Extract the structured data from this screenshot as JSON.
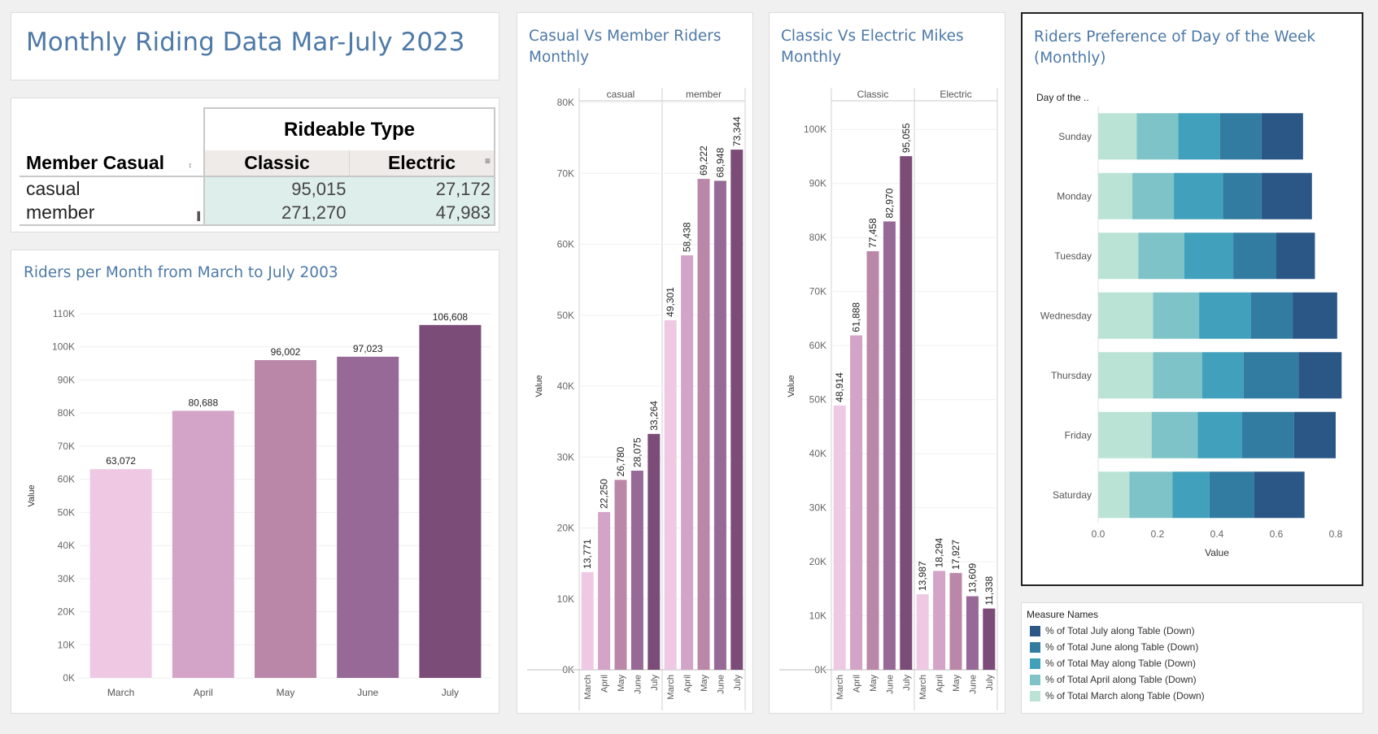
{
  "dashboard": {
    "title": "Monthly Riding Data Mar-July 2023"
  },
  "crosstab": {
    "column_group_header": "Rideable Type",
    "row_header": "Member Casual",
    "columns": [
      "Classic",
      "Electric"
    ],
    "rows": [
      {
        "label": "casual",
        "classic": "95,015",
        "electric": "27,172"
      },
      {
        "label": "member",
        "classic": "271,270",
        "electric": "47,983"
      }
    ]
  },
  "panels": {
    "riders_per_month_title": "Riders per Month from March to July 2003",
    "casual_vs_member_title": "Casual Vs Member Riders\nMonthly",
    "classic_vs_electric_title": "Classic Vs Electric Mikes\nMonthly",
    "day_pref_title": "Riders Preference of Day of the Week\n(Monthly)"
  },
  "legend": {
    "title": "Measure Names",
    "items": [
      {
        "label": "% of Total July along Table (Down)",
        "color": "#2b5787"
      },
      {
        "label": "% of Total June along Table (Down)",
        "color": "#327ca2"
      },
      {
        "label": "% of Total May along Table (Down)",
        "color": "#41a0bb"
      },
      {
        "label": "% of Total April along Table (Down)",
        "color": "#7ec3c8"
      },
      {
        "label": "% of Total March along Table (Down)",
        "color": "#bae3d6"
      }
    ]
  },
  "chart_data": [
    {
      "type": "bar",
      "title": "Riders per Month from March to July 2003",
      "ylabel": "Value",
      "categories": [
        "March",
        "April",
        "May",
        "June",
        "July"
      ],
      "values": [
        63072,
        80688,
        96002,
        97023,
        106608
      ],
      "data_labels": [
        "63,072",
        "80,688",
        "96,002",
        "97,023",
        "106,608"
      ],
      "ylim": [
        0,
        110000
      ],
      "yticks": [
        "0K",
        "10K",
        "20K",
        "30K",
        "40K",
        "50K",
        "60K",
        "70K",
        "80K",
        "90K",
        "100K",
        "110K"
      ],
      "colors": [
        "#efc9e4",
        "#d4a3c8",
        "#bb87a9",
        "#966997",
        "#7c4c78"
      ]
    },
    {
      "type": "bar",
      "title": "Casual Vs Member Riders\nMonthly",
      "ylabel": "Value",
      "panes": [
        "casual",
        "member"
      ],
      "categories": [
        "March",
        "April",
        "May",
        "June",
        "July"
      ],
      "series": [
        {
          "name": "casual",
          "values": [
            13771,
            22250,
            26780,
            28075,
            33264
          ],
          "data_labels": [
            "13,771",
            "22,250",
            "26,780",
            "28,075",
            "33,264"
          ]
        },
        {
          "name": "member",
          "values": [
            49301,
            58438,
            69222,
            68948,
            73344
          ],
          "data_labels": [
            "49,301",
            "58,438",
            "69,222",
            "68,948",
            "73,344"
          ]
        }
      ],
      "ylim": [
        0,
        80000
      ],
      "yticks": [
        "0K",
        "10K",
        "20K",
        "30K",
        "40K",
        "50K",
        "60K",
        "70K",
        "80K"
      ],
      "colors": [
        "#efc9e4",
        "#d4a3c8",
        "#bb87a9",
        "#966997",
        "#7c4c78"
      ]
    },
    {
      "type": "bar",
      "title": "Classic Vs Electric Mikes\nMonthly",
      "ylabel": "Value",
      "panes": [
        "Classic",
        "Electric"
      ],
      "categories": [
        "March",
        "April",
        "May",
        "June",
        "July"
      ],
      "series": [
        {
          "name": "Classic",
          "values": [
            48914,
            61888,
            77458,
            82970,
            95055
          ],
          "data_labels": [
            "48,914",
            "61,888",
            "77,458",
            "82,970",
            "95,055"
          ]
        },
        {
          "name": "Electric",
          "values": [
            13987,
            18294,
            17927,
            13609,
            11338
          ],
          "data_labels": [
            "13,987",
            "18,294",
            "17,927",
            "13,609",
            "11,338"
          ]
        }
      ],
      "ylim": [
        0,
        105000
      ],
      "yticks": [
        "0K",
        "10K",
        "20K",
        "30K",
        "40K",
        "50K",
        "60K",
        "70K",
        "80K",
        "90K",
        "100K"
      ],
      "colors": [
        "#efc9e4",
        "#d4a3c8",
        "#bb87a9",
        "#966997",
        "#7c4c78"
      ]
    },
    {
      "type": "bar",
      "orientation": "horizontal",
      "stacked": true,
      "title": "Riders Preference of Day of the Week\n(Monthly)",
      "row_header": "Day of the ..",
      "xlabel": "Value",
      "categories": [
        "Sunday",
        "Monday",
        "Tuesday",
        "Wednesday",
        "Thursday",
        "Friday",
        "Saturday"
      ],
      "series": [
        {
          "name": "% of Total March along Table (Down)",
          "values": [
            0.13,
            0.115,
            0.135,
            0.185,
            0.185,
            0.18,
            0.105
          ]
        },
        {
          "name": "% of Total April along Table (Down)",
          "values": [
            0.14,
            0.14,
            0.155,
            0.155,
            0.165,
            0.155,
            0.145
          ]
        },
        {
          "name": "% of Total May along Table (Down)",
          "values": [
            0.14,
            0.165,
            0.165,
            0.175,
            0.14,
            0.15,
            0.125
          ]
        },
        {
          "name": "% of Total June along Table (Down)",
          "values": [
            0.14,
            0.13,
            0.145,
            0.14,
            0.185,
            0.175,
            0.15
          ]
        },
        {
          "name": "% of Total July along Table (Down)",
          "values": [
            0.14,
            0.17,
            0.13,
            0.15,
            0.145,
            0.14,
            0.17
          ]
        }
      ],
      "xlim": [
        0,
        0.8
      ],
      "xticks": [
        "0.0",
        "0.2",
        "0.4",
        "0.6",
        "0.8"
      ],
      "colors": [
        "#bae3d6",
        "#7ec3c8",
        "#41a0bb",
        "#327ca2",
        "#2b5787"
      ]
    }
  ]
}
